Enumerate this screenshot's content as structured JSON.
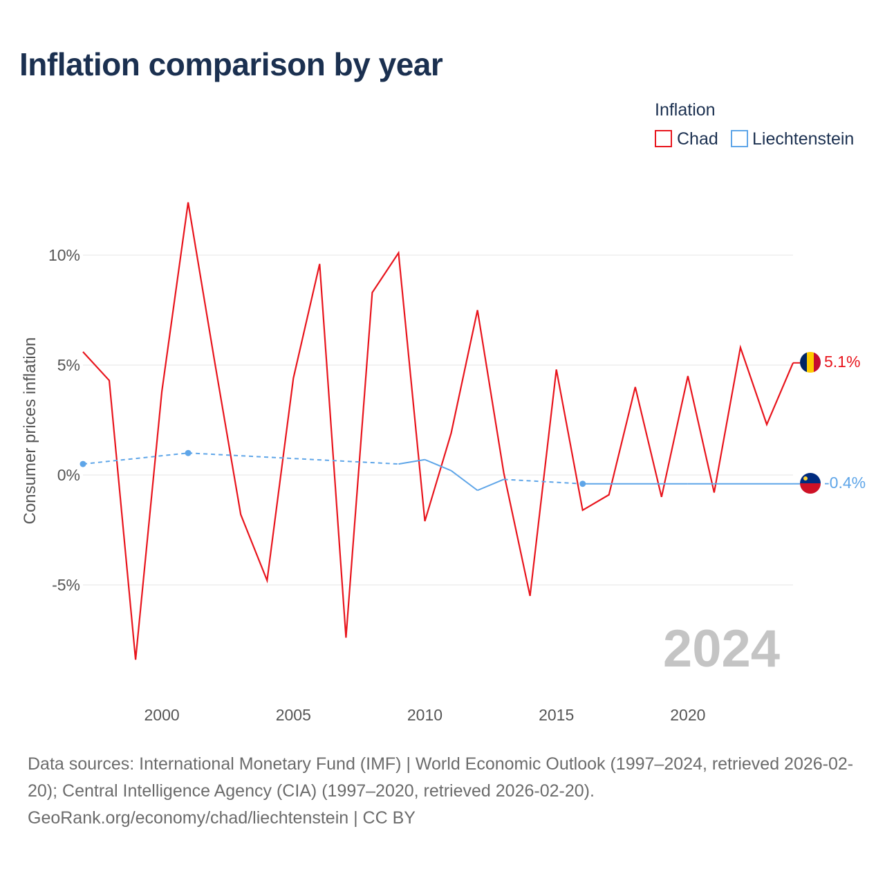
{
  "title": "Inflation comparison by year",
  "legend": {
    "title": "Inflation",
    "items": [
      {
        "name": "Chad",
        "color": "#e8141c"
      },
      {
        "name": "Liechtenstein",
        "color": "#5ea5e8"
      }
    ]
  },
  "year_watermark": "2024",
  "end_labels": {
    "chad": "5.1%",
    "liechtenstein": "-0.4%"
  },
  "source": {
    "line1": "Data sources: International Monetary Fund (IMF) | World Economic Outlook (1997–2024, retrieved 2026-02-20); Central Intelligence Agency (CIA) (1997–2020, retrieved 2026-02-20).",
    "line2": "GeoRank.org/economy/chad/liechtenstein | CC BY"
  },
  "colors": {
    "title": "#1b3050",
    "chad": "#e8141c",
    "liechtenstein": "#5ea5e8",
    "grid": "#e6e6e6",
    "axis_text": "#555555",
    "watermark": "#c4c4c4"
  },
  "chart_data": {
    "type": "line",
    "title": "Inflation comparison by year",
    "xlabel": "",
    "ylabel": "Consumer prices inflation",
    "xlim": [
      1997,
      2024
    ],
    "ylim": [
      -9.5,
      13.5
    ],
    "x_ticks": [
      2000,
      2005,
      2010,
      2015,
      2020
    ],
    "x_tick_labels": [
      "2000",
      "2005",
      "2010",
      "2015",
      "2020"
    ],
    "y_ticks": [
      10,
      5,
      0,
      -5
    ],
    "y_tick_labels": [
      "10%",
      "5%",
      "0%",
      "-5%"
    ],
    "grid": true,
    "legend_position": "top-right",
    "series": [
      {
        "name": "Chad",
        "color": "#e8141c",
        "style": "solid",
        "x": [
          1997,
          1998,
          1999,
          2000,
          2001,
          2002,
          2003,
          2004,
          2005,
          2006,
          2007,
          2008,
          2009,
          2010,
          2011,
          2012,
          2013,
          2014,
          2015,
          2016,
          2017,
          2018,
          2019,
          2020,
          2021,
          2022,
          2023,
          2024
        ],
        "values": [
          5.6,
          4.3,
          -8.4,
          3.8,
          12.4,
          5.2,
          -1.8,
          -4.8,
          4.4,
          9.6,
          -7.4,
          8.3,
          10.1,
          -2.1,
          1.9,
          7.5,
          0.1,
          -5.5,
          4.8,
          -1.6,
          -0.9,
          4.0,
          -1.0,
          4.5,
          -0.8,
          5.8,
          2.3,
          5.1
        ]
      },
      {
        "name": "Liechtenstein",
        "color": "#5ea5e8",
        "style": "mixed",
        "x": [
          1997,
          2001,
          2009,
          2010,
          2011,
          2012,
          2013,
          2016,
          2020,
          2024
        ],
        "values": [
          0.5,
          1.0,
          0.5,
          0.7,
          0.2,
          -0.7,
          -0.2,
          -0.4,
          -0.4,
          -0.4
        ],
        "dashed_segments": [
          [
            1997,
            2009
          ],
          [
            2013,
            2018
          ]
        ],
        "markers_at": [
          1997,
          2001,
          2016
        ]
      }
    ]
  }
}
